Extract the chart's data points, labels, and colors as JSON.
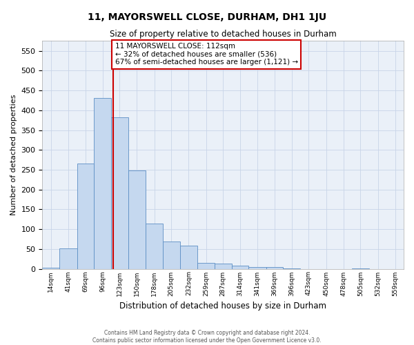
{
  "title": "11, MAYORSWELL CLOSE, DURHAM, DH1 1JU",
  "subtitle": "Size of property relative to detached houses in Durham",
  "xlabel": "Distribution of detached houses by size in Durham",
  "ylabel": "Number of detached properties",
  "footer_line1": "Contains HM Land Registry data © Crown copyright and database right 2024.",
  "footer_line2": "Contains public sector information licensed under the Open Government Licence v3.0.",
  "bar_color": "#c5d8ef",
  "bar_edge_color": "#5b8ec4",
  "highlight_line_color": "#cc0000",
  "annotation_text": "11 MAYORSWELL CLOSE: 112sqm\n← 32% of detached houses are smaller (536)\n67% of semi-detached houses are larger (1,121) →",
  "annotation_box_color": "#ffffff",
  "annotation_box_edge": "#cc0000",
  "property_sqm": 112,
  "categories": [
    "14sqm",
    "41sqm",
    "69sqm",
    "96sqm",
    "123sqm",
    "150sqm",
    "178sqm",
    "205sqm",
    "232sqm",
    "259sqm",
    "287sqm",
    "314sqm",
    "341sqm",
    "369sqm",
    "396sqm",
    "423sqm",
    "450sqm",
    "478sqm",
    "505sqm",
    "532sqm",
    "559sqm"
  ],
  "bar_left_edges": [
    0,
    27,
    55,
    82,
    109,
    136,
    164,
    191,
    218,
    246,
    273,
    300,
    327,
    355,
    382,
    409,
    436,
    464,
    491,
    518,
    546
  ],
  "bar_right_edges": [
    27,
    55,
    82,
    109,
    136,
    164,
    191,
    218,
    246,
    273,
    300,
    327,
    355,
    382,
    409,
    436,
    464,
    491,
    518,
    546,
    573
  ],
  "bar_heights": [
    3,
    51,
    265,
    432,
    383,
    249,
    114,
    68,
    58,
    14,
    13,
    8,
    5,
    5,
    1,
    0,
    0,
    0,
    1,
    0,
    0
  ],
  "ylim": [
    0,
    575
  ],
  "yticks": [
    0,
    50,
    100,
    150,
    200,
    250,
    300,
    350,
    400,
    450,
    500,
    550
  ],
  "xlim": [
    0,
    573
  ],
  "grid_color": "#c8d4e8",
  "background_color": "#eaf0f8"
}
